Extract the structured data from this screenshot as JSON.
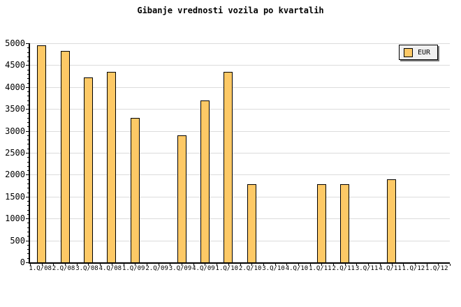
{
  "title": "Gibanje vrednosti vozila po kvartalih",
  "legend": {
    "items": [
      {
        "label": "EUR",
        "color": "#FDC966"
      }
    ]
  },
  "chart_data": {
    "type": "bar",
    "title": "Gibanje vrednosti vozila po kvartalih",
    "categories": [
      "1.Q/08",
      "2.Q/08",
      "3.Q/08",
      "4.Q/08",
      "1.Q/09",
      "2.Q/09",
      "3.Q/09",
      "4.Q/09",
      "1.Q/10",
      "2.Q/10",
      "3.Q/10",
      "4.Q/10",
      "1.Q/11",
      "2.Q/11",
      "3.Q/11",
      "4.Q/11",
      "1.Q/12",
      "1.Q/12"
    ],
    "series": [
      {
        "name": "EUR",
        "values": [
          4950,
          4820,
          4220,
          4350,
          3300,
          0,
          2900,
          3700,
          4350,
          1780,
          0,
          0,
          1780,
          1780,
          0,
          1900,
          0,
          0
        ]
      }
    ],
    "xlabel": "",
    "ylabel": "",
    "ylim": [
      0,
      5000
    ],
    "y_ticks": [
      0,
      500,
      1000,
      1500,
      2000,
      2500,
      3000,
      3500,
      4000,
      4500,
      5000
    ],
    "y_minor_tick_step": 100,
    "grid": "horizontal",
    "legend_position": "top-right"
  },
  "colors": {
    "background": "#FFFFFF",
    "bar_fill": "#FDC966",
    "bar_border": "#000000",
    "grid": "#DCDCDC",
    "axis": "#000000",
    "legend_bg": "#F0F0F0",
    "legend_shadow": "#777777"
  }
}
